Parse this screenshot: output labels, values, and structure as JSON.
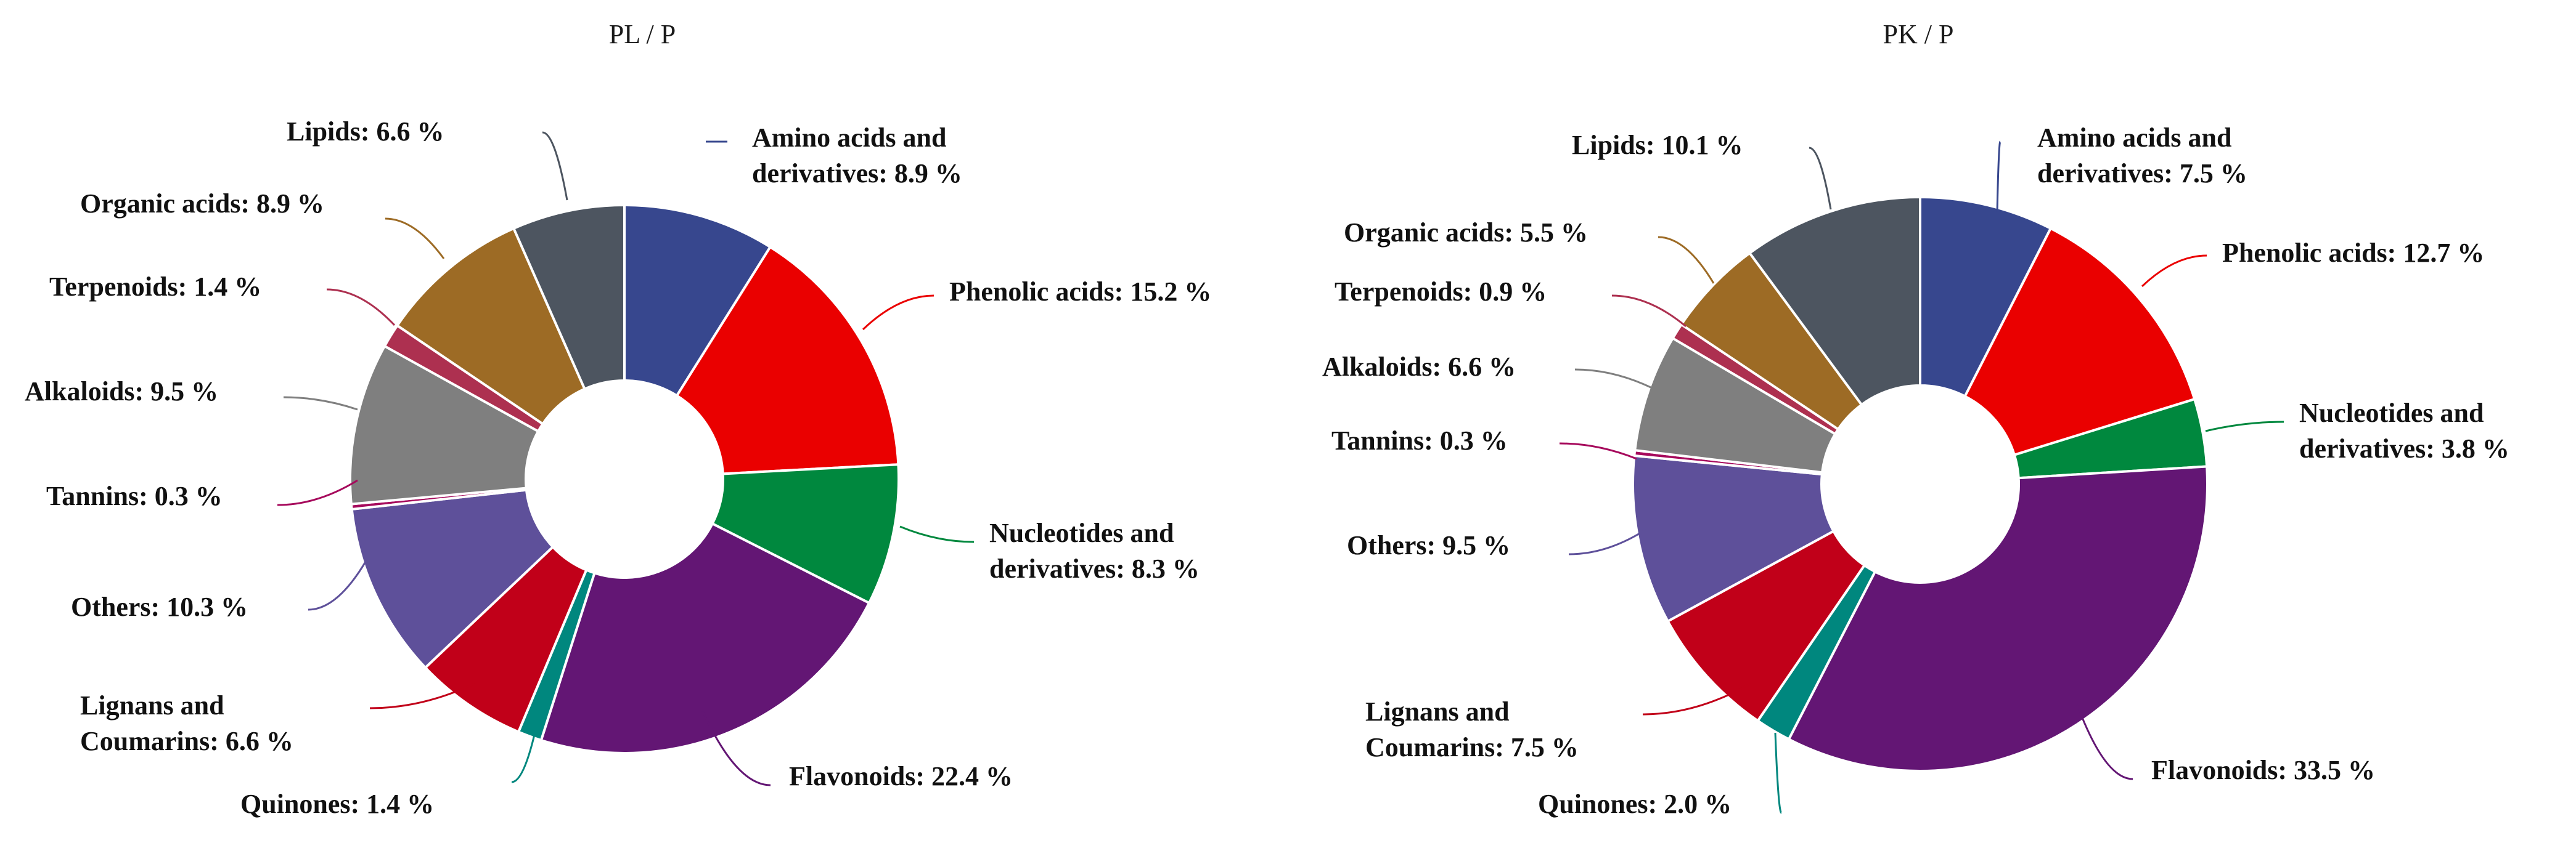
{
  "chart_data": [
    {
      "type": "pie",
      "donut": true,
      "title": "PL / P",
      "unit": "%",
      "slices": [
        {
          "name": "Amino acids and derivatives",
          "value": 8.9,
          "color": "#37478e",
          "label_lines": [
            "Amino acids and",
            "derivatives: 8.9 %"
          ]
        },
        {
          "name": "Phenolic acids",
          "value": 15.2,
          "color": "#ea0000",
          "label_lines": [
            "Phenolic acids: 15.2 %"
          ]
        },
        {
          "name": "Nucleotides and derivatives",
          "value": 8.3,
          "color": "#00883e",
          "label_lines": [
            "Nucleotides and",
            "derivatives: 8.3 %"
          ]
        },
        {
          "name": "Flavonoids",
          "value": 22.4,
          "color": "#631674",
          "label_lines": [
            "Flavonoids: 22.4 %"
          ]
        },
        {
          "name": "Quinones",
          "value": 1.4,
          "color": "#00877e",
          "label_lines": [
            "Quinones: 1.4 %"
          ]
        },
        {
          "name": "Lignans and Coumarins",
          "value": 6.6,
          "color": "#c10019",
          "label_lines": [
            "Lignans and",
            "Coumarins: 6.6 %"
          ]
        },
        {
          "name": "Others",
          "value": 10.3,
          "color": "#5e509a",
          "label_lines": [
            "Others: 10.3 %"
          ]
        },
        {
          "name": "Tannins",
          "value": 0.3,
          "color": "#a6095c",
          "label_lines": [
            "Tannins: 0.3 %"
          ]
        },
        {
          "name": "Alkaloids",
          "value": 9.5,
          "color": "#7f7f7f",
          "label_lines": [
            "Alkaloids: 9.5 %"
          ]
        },
        {
          "name": "Terpenoids",
          "value": 1.4,
          "color": "#ad3050",
          "label_lines": [
            "Terpenoids: 1.4 %"
          ]
        },
        {
          "name": "Organic acids",
          "value": 8.9,
          "color": "#9d6b25",
          "label_lines": [
            "Organic acids: 8.9 %"
          ]
        },
        {
          "name": "Lipids",
          "value": 6.6,
          "color": "#4d5560",
          "label_lines": [
            "Lipids: 6.6 %"
          ]
        }
      ]
    },
    {
      "type": "pie",
      "donut": true,
      "title": "PK / P",
      "unit": "%",
      "slices": [
        {
          "name": "Amino acids and derivatives",
          "value": 7.5,
          "color": "#37478e",
          "label_lines": [
            "Amino acids and",
            "derivatives: 7.5 %"
          ]
        },
        {
          "name": "Phenolic acids",
          "value": 12.7,
          "color": "#ea0000",
          "label_lines": [
            "Phenolic acids: 12.7 %"
          ]
        },
        {
          "name": "Nucleotides and derivatives",
          "value": 3.8,
          "color": "#00883e",
          "label_lines": [
            "Nucleotides and",
            "derivatives: 3.8 %"
          ]
        },
        {
          "name": "Flavonoids",
          "value": 33.5,
          "color": "#631674",
          "label_lines": [
            "Flavonoids: 33.5 %"
          ]
        },
        {
          "name": "Quinones",
          "value": 2.0,
          "color": "#00877e",
          "label_lines": [
            "Quinones: 2.0 %"
          ]
        },
        {
          "name": "Lignans and Coumarins",
          "value": 7.5,
          "color": "#c10019",
          "label_lines": [
            "Lignans and",
            "Coumarins: 7.5 %"
          ]
        },
        {
          "name": "Others",
          "value": 9.5,
          "color": "#5e509a",
          "label_lines": [
            "Others: 9.5 %"
          ]
        },
        {
          "name": "Tannins",
          "value": 0.3,
          "color": "#a6095c",
          "label_lines": [
            "Tannins: 0.3 %"
          ]
        },
        {
          "name": "Alkaloids",
          "value": 6.6,
          "color": "#7f7f7f",
          "label_lines": [
            "Alkaloids: 6.6 %"
          ]
        },
        {
          "name": "Terpenoids",
          "value": 0.9,
          "color": "#ad3050",
          "label_lines": [
            "Terpenoids: 0.9 %"
          ]
        },
        {
          "name": "Organic acids",
          "value": 5.5,
          "color": "#9d6b25",
          "label_lines": [
            "Organic acids: 5.5 %"
          ]
        },
        {
          "name": "Lipids",
          "value": 10.1,
          "color": "#4d5560",
          "label_lines": [
            "Lipids: 10.1 %"
          ]
        }
      ]
    }
  ]
}
